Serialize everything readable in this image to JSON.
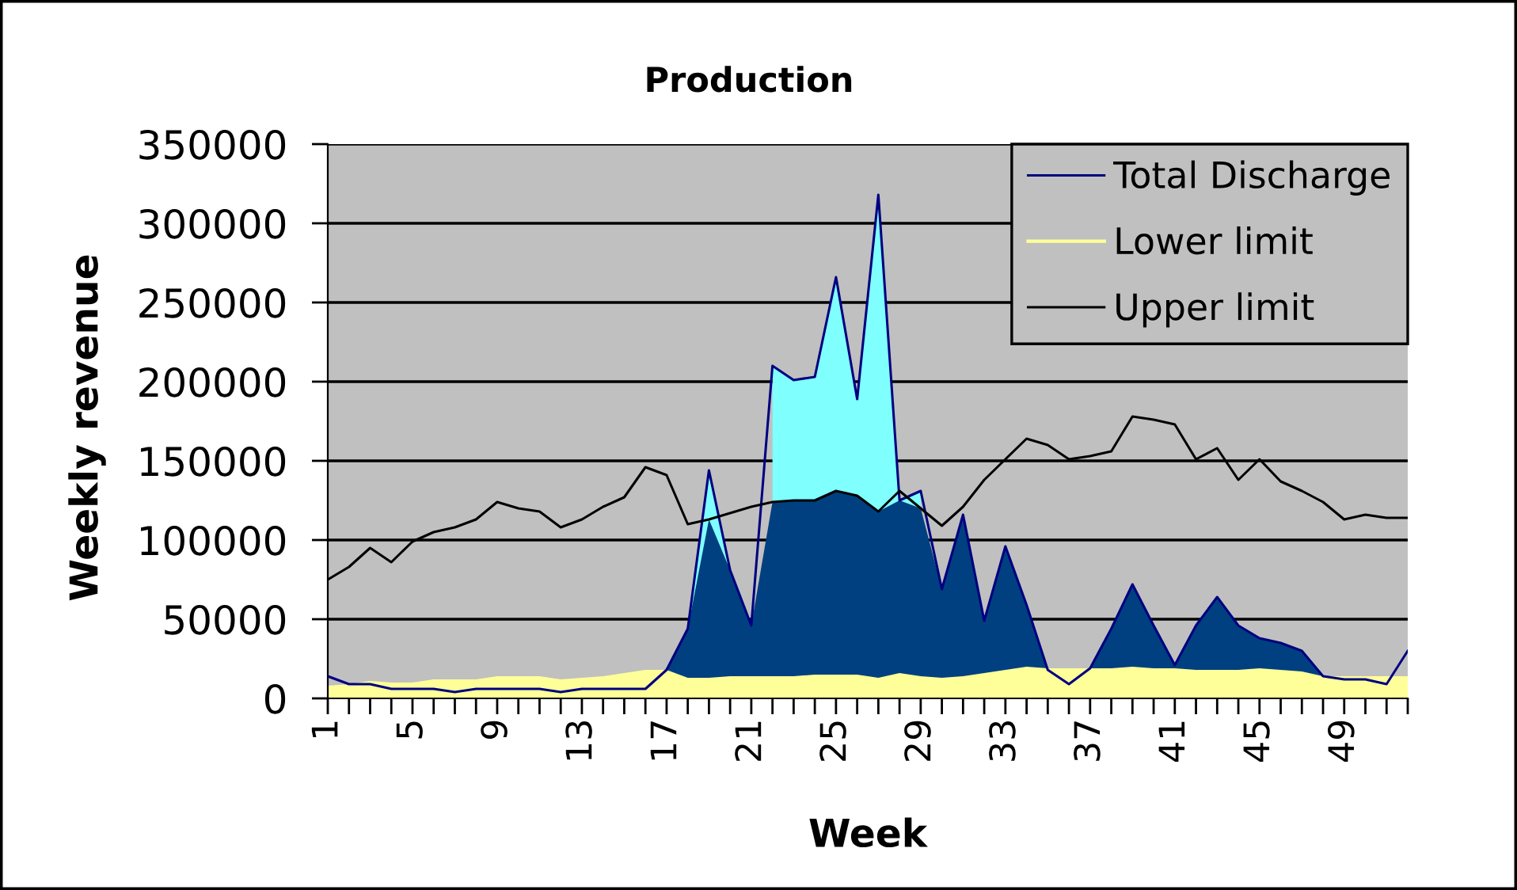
{
  "chart_data": {
    "type": "area",
    "title": "Production",
    "xlabel": "Week",
    "ylabel": "Weekly revenue",
    "categories": [
      "1",
      null,
      null,
      null,
      "5",
      null,
      null,
      null,
      "9",
      null,
      null,
      null,
      "13",
      null,
      null,
      null,
      "17",
      null,
      null,
      null,
      "21",
      null,
      null,
      null,
      "25",
      null,
      null,
      null,
      "29",
      null,
      null,
      null,
      "33",
      null,
      null,
      null,
      "37",
      null,
      null,
      null,
      "41",
      null,
      null,
      null,
      "45",
      null,
      null,
      null,
      "49",
      null,
      null,
      null
    ],
    "series": [
      {
        "color": "#80ffff",
        "values": [
          null,
          null,
          null,
          null,
          null,
          null,
          null,
          null,
          null,
          null,
          null,
          null,
          null,
          null,
          null,
          null,
          null,
          44000,
          144000,
          81000,
          null,
          210000,
          201000,
          203000,
          266000,
          189000,
          318000,
          125000,
          131000,
          null,
          null,
          null,
          null,
          null,
          null,
          null,
          null,
          null,
          null,
          null,
          null,
          null,
          null,
          null,
          null,
          null,
          null,
          null,
          null,
          null,
          null,
          null
        ]
      },
      {
        "color": "#004080",
        "values": [
          null,
          null,
          null,
          null,
          null,
          null,
          null,
          null,
          null,
          null,
          null,
          null,
          null,
          null,
          null,
          null,
          18000,
          44000,
          113000,
          81000,
          46000,
          124000,
          125000,
          125000,
          131000,
          128000,
          118000,
          125000,
          120000,
          69000,
          116000,
          49000,
          96000,
          59000,
          18000,
          null,
          19000,
          44000,
          72000,
          46000,
          21000,
          46000,
          64000,
          46000,
          38000,
          35000,
          30000,
          14000,
          null,
          null,
          null,
          null
        ]
      },
      {
        "name": "Total Discharge",
        "type": "line",
        "color": "#000080",
        "values": [
          14000,
          9000,
          9000,
          6000,
          6000,
          6000,
          4000,
          6000,
          6000,
          6000,
          6000,
          4000,
          6000,
          6000,
          6000,
          6000,
          18000,
          44000,
          144000,
          81000,
          46000,
          210000,
          201000,
          203000,
          266000,
          189000,
          318000,
          125000,
          131000,
          69000,
          116000,
          49000,
          96000,
          59000,
          18000,
          9000,
          19000,
          44000,
          72000,
          46000,
          21000,
          46000,
          64000,
          46000,
          38000,
          35000,
          30000,
          14000,
          12000,
          12000,
          9000,
          30000
        ]
      },
      {
        "name": "Lower limit",
        "color": "#ffff99",
        "values": [
          8000,
          9000,
          11000,
          10000,
          10000,
          12000,
          12000,
          12000,
          14000,
          14000,
          14000,
          12000,
          13000,
          14000,
          16000,
          18000,
          18000,
          13000,
          13000,
          14000,
          14000,
          14000,
          14000,
          15000,
          15000,
          15000,
          13000,
          16000,
          14000,
          13000,
          14000,
          16000,
          18000,
          20000,
          19000,
          19000,
          19000,
          19000,
          20000,
          19000,
          19000,
          18000,
          18000,
          18000,
          19000,
          18000,
          17000,
          14000,
          14000,
          14000,
          14000,
          14000
        ]
      },
      {
        "name": "Upper limit",
        "type": "line",
        "color": "#000000",
        "values": [
          75000,
          83000,
          95000,
          86000,
          99000,
          105000,
          108000,
          113000,
          124000,
          120000,
          118000,
          108000,
          113000,
          121000,
          127000,
          146000,
          141000,
          110000,
          113000,
          117000,
          121000,
          124000,
          125000,
          125000,
          131000,
          128000,
          118000,
          131000,
          120000,
          109000,
          121000,
          138000,
          151000,
          164000,
          160000,
          151000,
          153000,
          156000,
          178000,
          176000,
          173000,
          151000,
          158000,
          138000,
          151000,
          137000,
          131000,
          124000,
          113000,
          116000,
          114000,
          114000
        ]
      }
    ],
    "ylim": [
      0,
      350000
    ],
    "yticks": [
      0,
      50000,
      100000,
      150000,
      200000,
      250000,
      300000,
      350000
    ],
    "grid": "y",
    "legend": "top right"
  }
}
